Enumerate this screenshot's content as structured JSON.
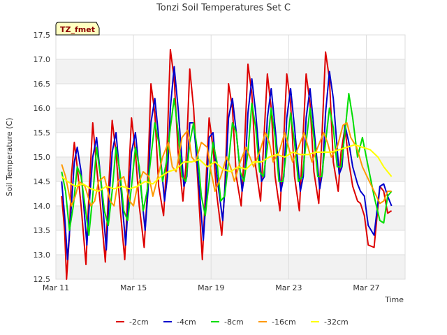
{
  "chart_data": {
    "type": "line",
    "title": "Tonzi Soil Temperatures Set C",
    "xlabel": "Time",
    "ylabel": "Soil Temperature (C)",
    "tag": "TZ_fmet",
    "xlim": [
      0,
      18.0
    ],
    "ylim": [
      12.5,
      17.5
    ],
    "x_ticks": [
      {
        "value": 0,
        "label": "Mar 11"
      },
      {
        "value": 4,
        "label": "Mar 15"
      },
      {
        "value": 8,
        "label": "Mar 19"
      },
      {
        "value": 12,
        "label": "Mar 23"
      },
      {
        "value": 16,
        "label": "Mar 27"
      }
    ],
    "y_ticks": [
      {
        "value": 12.5,
        "label": "12.5"
      },
      {
        "value": 13.0,
        "label": "13.0"
      },
      {
        "value": 13.5,
        "label": "13.5"
      },
      {
        "value": 14.0,
        "label": "14.0"
      },
      {
        "value": 14.5,
        "label": "14.5"
      },
      {
        "value": 15.0,
        "label": "15.0"
      },
      {
        "value": 15.5,
        "label": "15.5"
      },
      {
        "value": 16.0,
        "label": "16.0"
      },
      {
        "value": 16.5,
        "label": "16.5"
      },
      {
        "value": 17.0,
        "label": "17.0"
      },
      {
        "value": 17.5,
        "label": "17.5"
      }
    ],
    "grid": true,
    "legend_position": "bottom",
    "series": [
      {
        "name": "-2cm",
        "color": "#dd0000",
        "x": [
          0.3,
          0.45,
          0.55,
          0.7,
          0.8,
          0.95,
          1.1,
          1.3,
          1.55,
          1.7,
          1.9,
          2.1,
          2.3,
          2.55,
          2.7,
          2.9,
          3.1,
          3.3,
          3.55,
          3.7,
          3.9,
          4.1,
          4.3,
          4.55,
          4.7,
          4.9,
          5.1,
          5.3,
          5.55,
          5.7,
          5.9,
          6.1,
          6.3,
          6.55,
          6.7,
          6.9,
          7.1,
          7.3,
          7.55,
          7.7,
          7.9,
          8.1,
          8.3,
          8.55,
          8.7,
          8.9,
          9.1,
          9.3,
          9.55,
          9.7,
          9.9,
          10.1,
          10.3,
          10.55,
          10.7,
          10.9,
          11.1,
          11.3,
          11.55,
          11.7,
          11.9,
          12.1,
          12.3,
          12.55,
          12.7,
          12.9,
          13.1,
          13.3,
          13.55,
          13.7,
          13.9,
          14.1,
          14.3,
          14.55,
          14.7,
          14.9,
          15.1,
          15.3,
          15.55,
          15.7,
          15.9,
          16.1,
          16.4,
          16.7,
          16.9,
          17.1,
          17.3
        ],
        "y": [
          14.2,
          13.5,
          12.5,
          13.4,
          14.6,
          15.3,
          14.8,
          14.0,
          12.8,
          14.2,
          15.7,
          14.8,
          14.0,
          12.85,
          14.2,
          15.75,
          15.1,
          14.0,
          12.9,
          14.2,
          15.8,
          15.1,
          14.0,
          13.15,
          14.2,
          16.5,
          15.9,
          14.4,
          13.8,
          14.8,
          17.2,
          16.6,
          15.1,
          14.1,
          14.8,
          16.8,
          16.0,
          14.6,
          12.9,
          14.2,
          15.8,
          15.2,
          14.2,
          13.4,
          14.3,
          16.5,
          16.0,
          14.6,
          14.0,
          15.0,
          16.9,
          16.3,
          14.8,
          14.1,
          15.2,
          16.7,
          16.0,
          14.6,
          13.9,
          15.0,
          16.7,
          16.1,
          14.6,
          13.9,
          15.1,
          16.7,
          16.1,
          14.7,
          14.05,
          15.3,
          17.15,
          16.6,
          14.9,
          14.3,
          15.1,
          15.6,
          14.9,
          14.4,
          14.1,
          14.05,
          13.8,
          13.2,
          13.15,
          14.4,
          14.3,
          13.85,
          13.9
        ]
      },
      {
        "name": "-4cm",
        "color": "#0000cc",
        "x": [
          0.3,
          0.45,
          0.6,
          0.8,
          0.95,
          1.1,
          1.3,
          1.6,
          1.75,
          1.9,
          2.1,
          2.3,
          2.6,
          2.75,
          2.9,
          3.1,
          3.3,
          3.6,
          3.75,
          3.9,
          4.1,
          4.3,
          4.6,
          4.75,
          4.9,
          5.1,
          5.3,
          5.6,
          5.75,
          5.9,
          6.1,
          6.3,
          6.6,
          6.75,
          6.9,
          7.1,
          7.3,
          7.6,
          7.75,
          7.9,
          8.1,
          8.3,
          8.6,
          8.75,
          8.9,
          9.1,
          9.3,
          9.6,
          9.75,
          9.9,
          10.1,
          10.3,
          10.6,
          10.75,
          10.9,
          11.1,
          11.3,
          11.6,
          11.75,
          11.9,
          12.1,
          12.3,
          12.6,
          12.75,
          12.9,
          13.1,
          13.3,
          13.6,
          13.75,
          13.9,
          14.1,
          14.3,
          14.6,
          14.75,
          14.9,
          15.1,
          15.3,
          15.55,
          15.7,
          15.9,
          16.1,
          16.4,
          16.7,
          16.9,
          17.1,
          17.3
        ],
        "y": [
          14.5,
          13.8,
          12.9,
          14.0,
          14.9,
          15.2,
          14.7,
          13.2,
          14.2,
          15.0,
          15.4,
          14.6,
          13.1,
          14.2,
          15.1,
          15.5,
          14.6,
          13.2,
          14.2,
          15.1,
          15.5,
          14.7,
          13.5,
          14.3,
          15.7,
          16.2,
          15.4,
          14.1,
          14.6,
          16.0,
          16.85,
          16.0,
          14.4,
          14.6,
          15.7,
          15.7,
          14.8,
          13.3,
          14.2,
          15.4,
          15.5,
          14.6,
          13.7,
          14.6,
          15.8,
          16.2,
          15.5,
          14.3,
          14.7,
          15.9,
          16.6,
          15.9,
          14.5,
          14.6,
          15.8,
          16.4,
          15.6,
          14.3,
          14.6,
          15.8,
          16.4,
          15.6,
          14.3,
          14.6,
          15.8,
          16.4,
          15.6,
          14.35,
          14.7,
          15.9,
          16.75,
          16.2,
          14.65,
          14.8,
          15.65,
          15.3,
          14.8,
          14.45,
          14.3,
          14.2,
          13.6,
          13.4,
          14.4,
          14.45,
          14.2,
          14.0
        ]
      },
      {
        "name": "-8cm",
        "color": "#00dd00",
        "x": [
          0.3,
          0.5,
          0.7,
          0.9,
          1.1,
          1.3,
          1.5,
          1.7,
          1.9,
          2.1,
          2.3,
          2.5,
          2.7,
          2.9,
          3.1,
          3.3,
          3.5,
          3.7,
          3.9,
          4.1,
          4.3,
          4.5,
          4.7,
          4.9,
          5.1,
          5.3,
          5.5,
          5.7,
          5.9,
          6.1,
          6.3,
          6.5,
          6.7,
          6.9,
          7.1,
          7.3,
          7.5,
          7.7,
          7.9,
          8.1,
          8.3,
          8.5,
          8.7,
          8.9,
          9.1,
          9.3,
          9.5,
          9.7,
          9.9,
          10.1,
          10.3,
          10.5,
          10.7,
          10.9,
          11.1,
          11.3,
          11.5,
          11.7,
          11.9,
          12.1,
          12.3,
          12.5,
          12.7,
          12.9,
          13.1,
          13.3,
          13.5,
          13.7,
          13.9,
          14.1,
          14.3,
          14.5,
          14.7,
          14.9,
          15.1,
          15.3,
          15.55,
          15.8,
          16.1,
          16.4,
          16.7,
          16.9,
          17.1,
          17.3
        ],
        "y": [
          14.7,
          14.3,
          13.5,
          14.0,
          14.8,
          14.6,
          14.0,
          13.4,
          14.2,
          15.2,
          14.6,
          13.9,
          13.6,
          14.3,
          15.2,
          14.7,
          13.9,
          13.7,
          14.4,
          15.2,
          14.8,
          13.9,
          14.3,
          15.0,
          15.7,
          15.3,
          14.5,
          14.9,
          15.6,
          16.2,
          15.5,
          14.6,
          14.5,
          15.3,
          15.7,
          15.1,
          14.2,
          13.8,
          14.5,
          15.3,
          14.9,
          14.1,
          14.2,
          14.9,
          15.7,
          15.5,
          14.7,
          14.5,
          15.1,
          16.1,
          15.6,
          14.7,
          14.6,
          15.2,
          16.0,
          15.4,
          14.5,
          14.5,
          15.2,
          15.9,
          15.3,
          14.5,
          14.6,
          15.3,
          16.0,
          15.4,
          14.6,
          14.6,
          15.3,
          16.0,
          15.6,
          14.8,
          14.8,
          15.5,
          16.3,
          15.8,
          15.0,
          15.4,
          14.8,
          14.2,
          13.7,
          13.65,
          14.2,
          14.3
        ]
      },
      {
        "name": "-16cm",
        "color": "#ff9900",
        "x": [
          0.3,
          0.5,
          0.8,
          1.0,
          1.2,
          1.5,
          1.8,
          2.0,
          2.2,
          2.5,
          2.8,
          3.0,
          3.2,
          3.5,
          3.8,
          4.0,
          4.2,
          4.5,
          4.8,
          5.0,
          5.2,
          5.5,
          5.8,
          6.0,
          6.2,
          6.5,
          6.8,
          7.0,
          7.2,
          7.5,
          7.8,
          8.0,
          8.2,
          8.5,
          8.8,
          9.0,
          9.2,
          9.5,
          9.8,
          10.0,
          10.2,
          10.5,
          10.8,
          11.0,
          11.2,
          11.5,
          11.8,
          12.0,
          12.2,
          12.5,
          12.8,
          13.0,
          13.2,
          13.5,
          13.8,
          14.0,
          14.2,
          14.5,
          14.8,
          15.0,
          15.2,
          15.5,
          15.8,
          16.1,
          16.4,
          16.7,
          16.9,
          17.1,
          17.3
        ],
        "y": [
          14.85,
          14.6,
          14.0,
          14.2,
          14.5,
          14.4,
          14.0,
          14.1,
          14.5,
          14.6,
          14.1,
          14.0,
          14.5,
          14.6,
          14.1,
          14.0,
          14.4,
          14.7,
          14.6,
          14.2,
          14.5,
          15.0,
          15.3,
          14.8,
          14.7,
          15.4,
          15.55,
          15.0,
          14.9,
          15.3,
          15.2,
          14.7,
          14.3,
          14.6,
          15.0,
          14.8,
          14.5,
          14.9,
          15.2,
          15.0,
          14.8,
          15.1,
          15.5,
          15.3,
          14.9,
          15.1,
          15.5,
          15.2,
          14.9,
          15.2,
          15.5,
          15.2,
          14.9,
          15.2,
          15.5,
          15.3,
          15.0,
          15.2,
          15.65,
          15.7,
          15.4,
          15.2,
          14.8,
          14.55,
          14.3,
          14.05,
          14.1,
          14.3,
          14.3
        ]
      },
      {
        "name": "-32cm",
        "color": "#ffff00",
        "x": [
          0.3,
          0.6,
          1.0,
          1.4,
          1.8,
          2.2,
          2.6,
          3.0,
          3.4,
          3.8,
          4.2,
          4.6,
          5.0,
          5.4,
          5.8,
          6.2,
          6.6,
          7.0,
          7.4,
          7.8,
          8.2,
          8.6,
          9.0,
          9.4,
          9.8,
          10.2,
          10.6,
          11.0,
          11.4,
          11.8,
          12.2,
          12.6,
          13.0,
          13.4,
          13.8,
          14.2,
          14.6,
          15.0,
          15.4,
          15.8,
          16.2,
          16.6,
          16.9,
          17.1,
          17.3
        ],
        "y": [
          14.6,
          14.5,
          14.4,
          14.45,
          14.35,
          14.3,
          14.4,
          14.35,
          14.4,
          14.35,
          14.4,
          14.5,
          14.45,
          14.6,
          14.7,
          14.75,
          14.9,
          14.9,
          14.95,
          14.8,
          14.9,
          14.75,
          14.7,
          14.8,
          14.75,
          14.9,
          14.9,
          15.0,
          15.05,
          15.0,
          15.1,
          15.05,
          15.05,
          15.1,
          15.1,
          15.1,
          15.15,
          15.2,
          15.25,
          15.2,
          15.15,
          15.0,
          14.8,
          14.7,
          14.6
        ]
      }
    ]
  }
}
